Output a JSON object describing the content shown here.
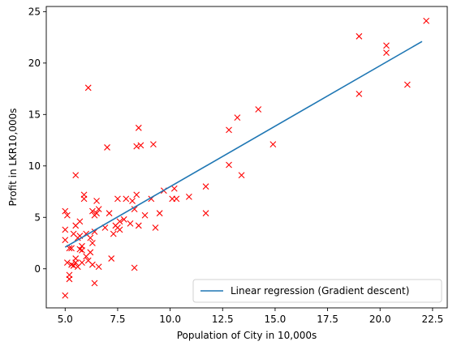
{
  "chart_data": {
    "type": "scatter",
    "title": "",
    "xlabel": "Population of City in 10,000s",
    "ylabel": "Profit in LKR10,000s",
    "xlim": [
      4.1,
      23.2
    ],
    "ylim": [
      -3.8,
      25.5
    ],
    "xticks": [
      5.0,
      7.5,
      10.0,
      12.5,
      15.0,
      17.5,
      20.0,
      22.5
    ],
    "xtick_labels": [
      "5.0",
      "7.5",
      "10.0",
      "12.5",
      "15.0",
      "17.5",
      "20.0",
      "22.5"
    ],
    "yticks": [
      0,
      5,
      10,
      15,
      20,
      25
    ],
    "ytick_labels": [
      "0",
      "5",
      "10",
      "15",
      "20",
      "25"
    ],
    "grid": false,
    "legend_position": "lower-right",
    "series": [
      {
        "kind": "scatter",
        "marker": "x",
        "color": "#ff0000",
        "points": [
          [
            5.0,
            5.6
          ],
          [
            5.0,
            3.8
          ],
          [
            5.0,
            2.8
          ],
          [
            5.0,
            -2.6
          ],
          [
            5.1,
            5.2
          ],
          [
            5.1,
            0.6
          ],
          [
            5.2,
            2.0
          ],
          [
            5.2,
            -0.6
          ],
          [
            5.2,
            -1.0
          ],
          [
            5.3,
            2.0
          ],
          [
            5.3,
            0.4
          ],
          [
            5.4,
            3.4
          ],
          [
            5.4,
            0.3
          ],
          [
            5.5,
            4.2
          ],
          [
            5.5,
            1.0
          ],
          [
            5.5,
            0.6
          ],
          [
            5.5,
            9.1
          ],
          [
            5.6,
            3.0
          ],
          [
            5.6,
            0.2
          ],
          [
            5.7,
            3.2
          ],
          [
            5.7,
            4.6
          ],
          [
            5.7,
            1.9
          ],
          [
            5.8,
            2.2
          ],
          [
            5.8,
            1.8
          ],
          [
            5.8,
            0.6
          ],
          [
            5.9,
            7.2
          ],
          [
            5.9,
            6.8
          ],
          [
            6.0,
            1.2
          ],
          [
            6.0,
            3.4
          ],
          [
            6.1,
            17.6
          ],
          [
            6.1,
            0.8
          ],
          [
            6.2,
            3.0
          ],
          [
            6.2,
            1.6
          ],
          [
            6.3,
            2.5
          ],
          [
            6.3,
            5.6
          ],
          [
            6.3,
            0.4
          ],
          [
            6.4,
            5.2
          ],
          [
            6.4,
            -1.4
          ],
          [
            6.4,
            3.6
          ],
          [
            6.5,
            6.6
          ],
          [
            6.5,
            5.4
          ],
          [
            6.6,
            5.8
          ],
          [
            6.6,
            0.2
          ],
          [
            6.9,
            4.0
          ],
          [
            7.0,
            11.8
          ],
          [
            7.1,
            5.4
          ],
          [
            7.2,
            1.0
          ],
          [
            7.3,
            3.4
          ],
          [
            7.4,
            4.2
          ],
          [
            7.5,
            6.8
          ],
          [
            7.5,
            4.0
          ],
          [
            7.6,
            4.6
          ],
          [
            7.6,
            3.8
          ],
          [
            7.8,
            4.8
          ],
          [
            7.9,
            6.8
          ],
          [
            8.1,
            4.4
          ],
          [
            8.2,
            6.6
          ],
          [
            8.3,
            5.8
          ],
          [
            8.3,
            0.1
          ],
          [
            8.4,
            7.2
          ],
          [
            8.4,
            11.9
          ],
          [
            8.5,
            13.7
          ],
          [
            8.5,
            4.2
          ],
          [
            8.6,
            12.0
          ],
          [
            8.8,
            5.2
          ],
          [
            9.1,
            6.8
          ],
          [
            9.2,
            12.1
          ],
          [
            9.3,
            4.0
          ],
          [
            9.5,
            5.4
          ],
          [
            9.7,
            7.6
          ],
          [
            10.1,
            6.8
          ],
          [
            10.2,
            7.8
          ],
          [
            10.3,
            6.8
          ],
          [
            10.9,
            7.0
          ],
          [
            11.7,
            5.4
          ],
          [
            11.7,
            8.0
          ],
          [
            12.8,
            13.5
          ],
          [
            12.8,
            10.1
          ],
          [
            13.2,
            14.7
          ],
          [
            13.4,
            9.1
          ],
          [
            14.2,
            15.5
          ],
          [
            14.9,
            12.1
          ],
          [
            19.0,
            22.6
          ],
          [
            19.0,
            17.0
          ],
          [
            20.3,
            21.7
          ],
          [
            20.3,
            21.0
          ],
          [
            21.3,
            17.9
          ],
          [
            22.2,
            24.1
          ]
        ]
      },
      {
        "kind": "line",
        "name": "Linear regression (Gradient descent)",
        "color": "#1f77b4",
        "x": [
          5.0,
          22.0
        ],
        "y": [
          2.1,
          22.1
        ]
      }
    ]
  }
}
